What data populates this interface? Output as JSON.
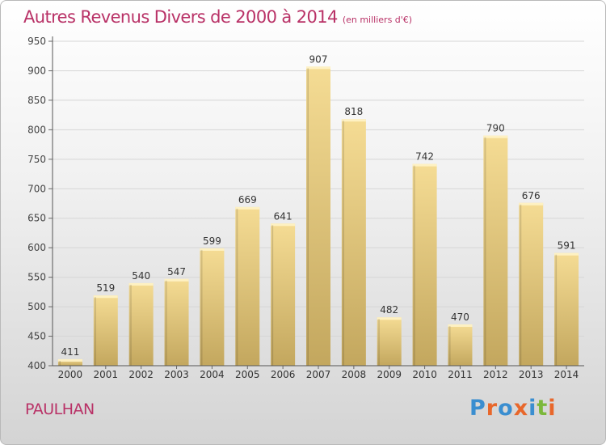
{
  "header": {
    "title": "Autres Revenus Divers de 2000 à 2014",
    "subtitle": "(en milliers d'€)"
  },
  "footer": {
    "place": "PAULHAN",
    "logo_letters": [
      "P",
      "r",
      "o",
      "x",
      "i",
      "t",
      "i"
    ]
  },
  "colors": {
    "title": "#b93267",
    "bar_top": "#f5dc94",
    "bar_bottom": "#c3a75e",
    "logo": [
      "#3a8ed0",
      "#e8672b",
      "#3a8ed0",
      "#e8672b",
      "#3a8ed0",
      "#7cb83b",
      "#e8672b"
    ]
  },
  "chart_data": {
    "type": "bar",
    "categories": [
      "2000",
      "2001",
      "2002",
      "2003",
      "2004",
      "2005",
      "2006",
      "2007",
      "2008",
      "2009",
      "2010",
      "2011",
      "2012",
      "2013",
      "2014"
    ],
    "values": [
      411,
      519,
      540,
      547,
      599,
      669,
      641,
      907,
      818,
      482,
      742,
      470,
      790,
      676,
      591
    ],
    "ylim": [
      400,
      950
    ],
    "yticks": [
      "400",
      "450",
      "500",
      "550",
      "600",
      "650",
      "700",
      "750",
      "800",
      "850",
      "900",
      "950"
    ],
    "grid": true,
    "data_labels": true
  }
}
